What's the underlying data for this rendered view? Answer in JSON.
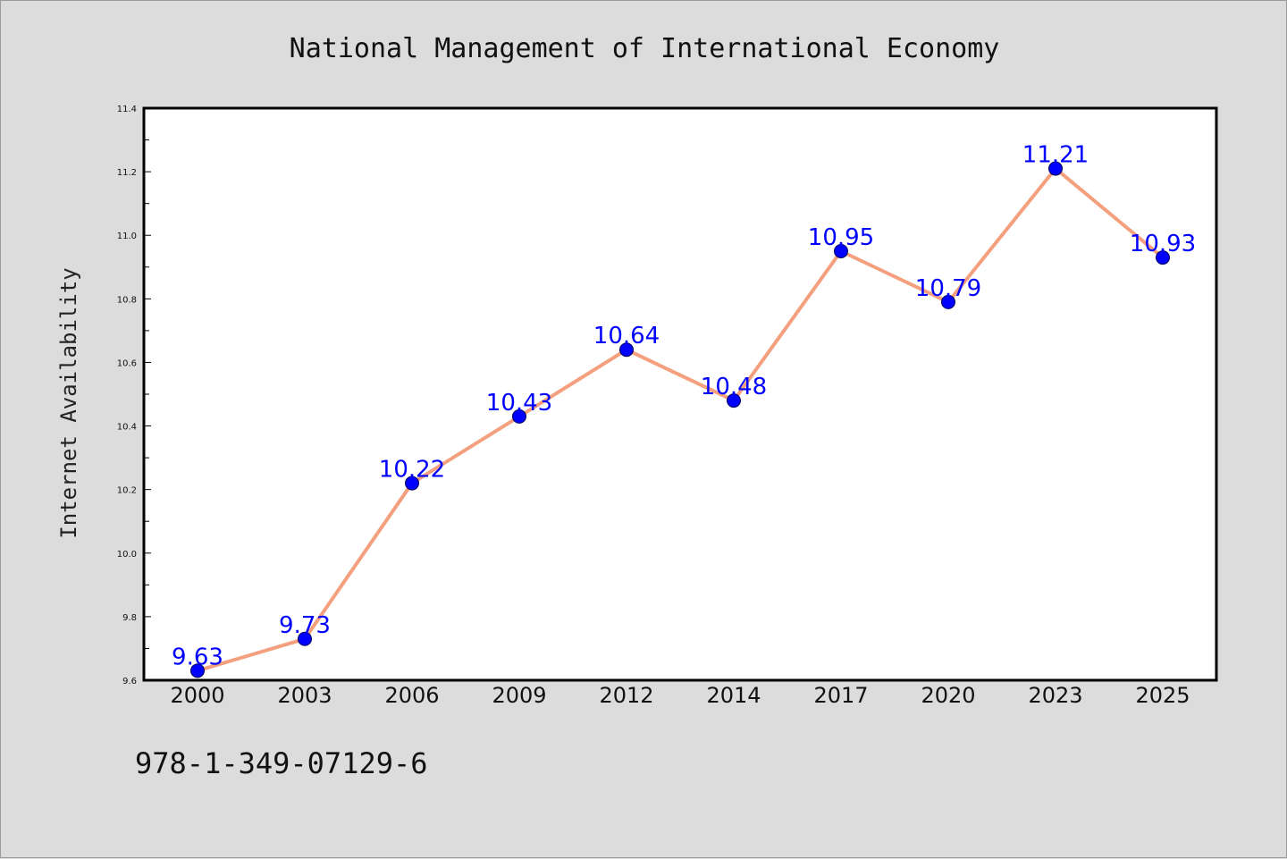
{
  "chart_data": {
    "type": "line",
    "title": "National Management of International Economy",
    "xlabel": "",
    "ylabel": "Internet Availability",
    "categories": [
      "2000",
      "2003",
      "2006",
      "2009",
      "2012",
      "2014",
      "2017",
      "2020",
      "2023",
      "2025"
    ],
    "values": [
      9.63,
      9.73,
      10.22,
      10.43,
      10.64,
      10.48,
      10.95,
      10.79,
      11.21,
      10.93
    ],
    "data_labels": [
      "9.63",
      "9.73",
      "10.22",
      "10.43",
      "10.64",
      "10.48",
      "10.95",
      "10.79",
      "11.21",
      "10.93"
    ],
    "ylim": [
      9.6,
      11.4
    ],
    "yticks": [
      "9.6",
      "9.8",
      "10.0",
      "10.2",
      "10.4",
      "10.6",
      "10.8",
      "11.0",
      "11.2",
      "11.4"
    ],
    "grid": false,
    "legend": "none",
    "line_color": "#f4a07e",
    "marker_color": "#0000ff",
    "label_color": "#0000ff"
  },
  "footer": {
    "code": "978-1-349-07129-6"
  },
  "colors": {
    "background": "#dcdcdc",
    "plot_area": "#ffffff",
    "axis": "#000000"
  }
}
